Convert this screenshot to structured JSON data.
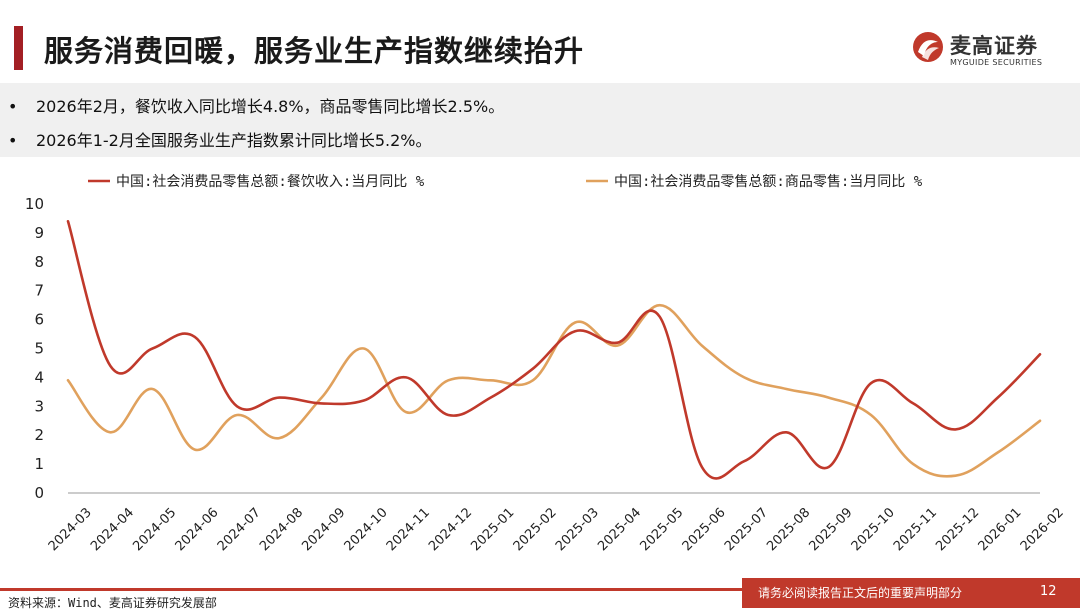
{
  "header": {
    "title": "服务消费回暖，服务业生产指数继续抬升",
    "logo_cn": "麦高证券",
    "logo_en": "MYGUIDE SECURITIES"
  },
  "bullets": [
    "2026年2月，餐饮收入同比增长4.8%，商品零售同比增长2.5%。",
    "2026年1-2月全国服务业生产指数累计同比增长5.2%。"
  ],
  "bullet_symbol": "•",
  "footer": {
    "source": "资料来源：Wind、麦高证券研究发展部",
    "disclaimer": "请务必阅读报告正文后的重要声明部分",
    "page_number": "12"
  },
  "chart_data": {
    "type": "line",
    "title": "",
    "xlabel": "",
    "ylabel": "",
    "ylim": [
      0,
      10
    ],
    "yticks": [
      "0",
      "1",
      "2",
      "3",
      "4",
      "5",
      "6",
      "7",
      "8",
      "9",
      "10"
    ],
    "legend_position": "top",
    "grid": false,
    "categories": [
      "2024-03",
      "2024-04",
      "2024-05",
      "2024-06",
      "2024-07",
      "2024-08",
      "2024-09",
      "2024-10",
      "2024-11",
      "2024-12",
      "2025-01",
      "2025-02",
      "2025-03",
      "2025-04",
      "2025-05",
      "2025-06",
      "2025-07",
      "2025-08",
      "2025-09",
      "2025-10",
      "2025-11",
      "2025-12",
      "2026-01",
      "2026-02"
    ],
    "series": [
      {
        "name": "中国:社会消费品零售总额:餐饮收入:当月同比 %",
        "color": "#c0392b",
        "values": [
          9.4,
          4.4,
          5.0,
          5.4,
          3.0,
          3.3,
          3.1,
          3.2,
          4.0,
          2.7,
          3.3,
          4.3,
          5.6,
          5.2,
          6.1,
          0.9,
          1.1,
          2.1,
          0.9,
          3.8,
          3.1,
          2.2,
          3.3,
          4.8
        ]
      },
      {
        "name": "中国:社会消费品零售总额:商品零售:当月同比 %",
        "color": "#e0a15d",
        "values": [
          3.9,
          2.1,
          3.6,
          1.5,
          2.7,
          1.9,
          3.3,
          5.0,
          2.8,
          3.9,
          3.9,
          3.9,
          5.9,
          5.1,
          6.5,
          5.1,
          4.0,
          3.6,
          3.3,
          2.7,
          1.0,
          0.6,
          1.4,
          2.5
        ]
      }
    ]
  }
}
